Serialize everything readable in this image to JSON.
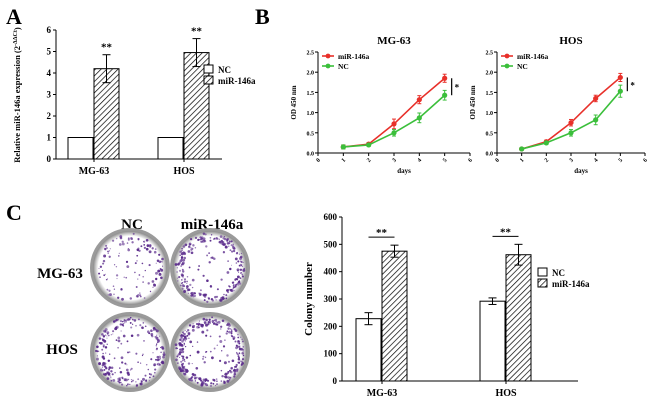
{
  "panels": {
    "a_letter": "A",
    "b_letter": "B",
    "c_letter": "C"
  },
  "colors": {
    "mir": "#e8302a",
    "nc": "#3bbf3b",
    "axis": "#000000",
    "dish_stain": "#5b2c8c"
  },
  "dish_labels": {
    "col_nc": "NC",
    "col_mir": "miR-146a",
    "row_mg63": "MG-63",
    "row_hos": "HOS"
  },
  "chart_data": [
    {
      "id": "A",
      "type": "bar",
      "categories": [
        "MG-63",
        "HOS"
      ],
      "series": [
        {
          "name": "NC",
          "values": [
            1.0,
            1.0
          ],
          "errors": [
            0,
            0
          ],
          "pattern": "open"
        },
        {
          "name": "miR-146a",
          "values": [
            4.2,
            4.95
          ],
          "errors": [
            0.65,
            0.65
          ],
          "pattern": "hatched"
        }
      ],
      "significance": [
        "**",
        "**"
      ],
      "title": "",
      "xlabel": "",
      "ylabel": "Relative miR-146a expression",
      "ylabel_suffix": "(2",
      "ylabel_exponent": "-ΔΔCt",
      "ylabel_close": ")",
      "ylim": [
        0,
        6
      ],
      "yticks": [
        "0",
        "1",
        "2",
        "3",
        "4",
        "5",
        "6"
      ],
      "legend": [
        "NC",
        "miR-146a"
      ]
    },
    {
      "id": "B1",
      "type": "line",
      "title": "MG-63",
      "xlabel": "days",
      "ylabel": "OD 450 nm",
      "x": [
        1,
        2,
        3,
        4,
        5
      ],
      "xlim": [
        0,
        6
      ],
      "xticks": [
        "0",
        "1",
        "2",
        "3",
        "4",
        "5",
        "6"
      ],
      "ylim": [
        0,
        2.5
      ],
      "yticks": [
        "0.0",
        "0.5",
        "1.0",
        "1.5",
        "2.0",
        "2.5"
      ],
      "series": [
        {
          "name": "miR-146a",
          "values": [
            0.15,
            0.22,
            0.72,
            1.32,
            1.85
          ],
          "errors": [
            0.05,
            0.04,
            0.12,
            0.1,
            0.1
          ]
        },
        {
          "name": "NC",
          "values": [
            0.15,
            0.2,
            0.5,
            0.87,
            1.43
          ],
          "errors": [
            0.05,
            0.04,
            0.08,
            0.12,
            0.12
          ]
        }
      ],
      "significance": "*",
      "legend": [
        "miR-146a",
        "NC"
      ]
    },
    {
      "id": "B2",
      "type": "line",
      "title": "HOS",
      "xlabel": "days",
      "ylabel": "OD 450 nm",
      "x": [
        1,
        2,
        3,
        4,
        5
      ],
      "xlim": [
        0,
        6
      ],
      "xticks": [
        "0",
        "1",
        "2",
        "3",
        "4",
        "5",
        "6"
      ],
      "ylim": [
        0,
        2.5
      ],
      "yticks": [
        "0.0",
        "0.5",
        "1.0",
        "1.5",
        "2.0",
        "2.5"
      ],
      "series": [
        {
          "name": "miR-146a",
          "values": [
            0.1,
            0.28,
            0.75,
            1.35,
            1.87
          ],
          "errors": [
            0.03,
            0.04,
            0.08,
            0.08,
            0.1
          ]
        },
        {
          "name": "NC",
          "values": [
            0.1,
            0.25,
            0.5,
            0.82,
            1.53
          ],
          "errors": [
            0.03,
            0.04,
            0.08,
            0.12,
            0.15
          ]
        }
      ],
      "significance": "*",
      "legend": [
        "miR-146a",
        "NC"
      ]
    },
    {
      "id": "C",
      "type": "bar",
      "categories": [
        "MG-63",
        "HOS"
      ],
      "series": [
        {
          "name": "NC",
          "values": [
            228,
            292
          ],
          "errors": [
            22,
            12
          ],
          "pattern": "open"
        },
        {
          "name": "miR-146a",
          "values": [
            475,
            462
          ],
          "errors": [
            22,
            38
          ],
          "pattern": "hatched"
        }
      ],
      "significance": [
        "**",
        "**"
      ],
      "title": "",
      "xlabel": "",
      "ylabel": "Colony number",
      "ylim": [
        0,
        600
      ],
      "yticks": [
        "0",
        "100",
        "200",
        "300",
        "400",
        "500",
        "600"
      ],
      "legend": [
        "NC",
        "miR-146a"
      ]
    }
  ]
}
